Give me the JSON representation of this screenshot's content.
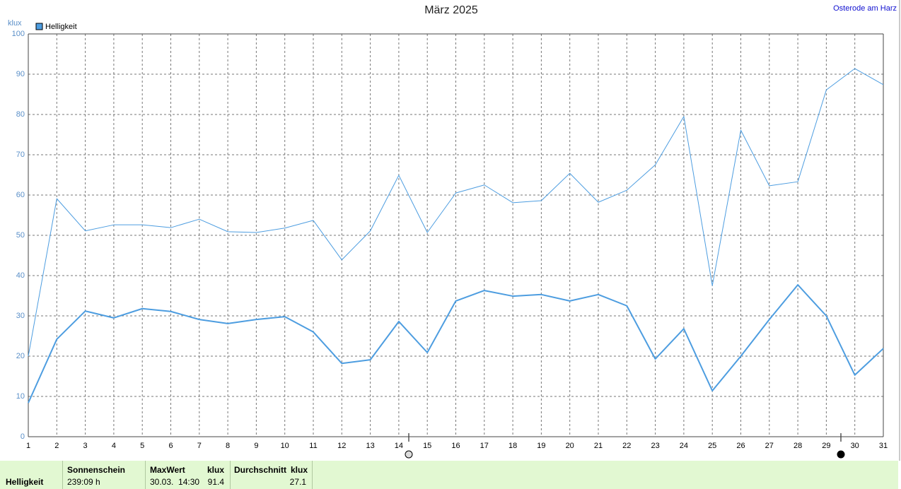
{
  "chart_data": {
    "type": "line",
    "title": "März 2025",
    "location": "Osterode am Harz",
    "y_unit": "klux",
    "x": [
      1,
      2,
      3,
      4,
      5,
      6,
      7,
      8,
      9,
      10,
      11,
      12,
      13,
      14,
      15,
      16,
      17,
      18,
      19,
      20,
      21,
      22,
      23,
      24,
      25,
      26,
      27,
      28,
      29,
      30,
      31
    ],
    "xlim": [
      1,
      31
    ],
    "xticks": [
      1,
      2,
      3,
      4,
      5,
      6,
      7,
      8,
      9,
      10,
      11,
      12,
      13,
      14,
      15,
      16,
      17,
      18,
      19,
      20,
      21,
      22,
      23,
      24,
      25,
      26,
      27,
      28,
      29,
      30,
      31
    ],
    "ylim": [
      0,
      100
    ],
    "yticks": [
      0,
      10,
      20,
      30,
      40,
      50,
      60,
      70,
      80,
      90,
      100
    ],
    "grid": true,
    "series": [
      {
        "name": "Helligkeit",
        "color": "#4d9de0",
        "width": 1,
        "values": [
          20,
          59.1,
          51.1,
          52.6,
          52.6,
          51.9,
          54.0,
          50.9,
          50.7,
          51.8,
          53.7,
          43.9,
          51.1,
          64.9,
          50.7,
          60.5,
          62.5,
          58.1,
          58.6,
          65.4,
          58.2,
          61.2,
          67.5,
          79.5,
          37.5,
          76.1,
          62.3,
          63.3,
          86.1,
          91.4,
          87.4
        ]
      },
      {
        "color": "#4d9de0",
        "width": 2,
        "values": [
          8.4,
          24.2,
          31.2,
          29.5,
          31.8,
          31.1,
          29.1,
          28.1,
          29.1,
          29.8,
          26.0,
          18.2,
          19.1,
          28.6,
          20.9,
          33.7,
          36.3,
          34.9,
          35.3,
          33.7,
          35.3,
          32.5,
          19.3,
          26.8,
          11.4,
          20.0,
          29.1,
          37.7,
          30.0,
          15.3,
          21.9
        ]
      }
    ]
  },
  "table": {
    "label": "Helligkeit",
    "sunshine": {
      "header": "Sonnenschein",
      "value": "239:09 h"
    },
    "max": {
      "header": "MaxWert",
      "unit": "klux",
      "date": "30.03.  14:30",
      "value": "91.4"
    },
    "avg": {
      "header": "Durchschnitt",
      "unit": "klux",
      "value": "27.1"
    }
  }
}
